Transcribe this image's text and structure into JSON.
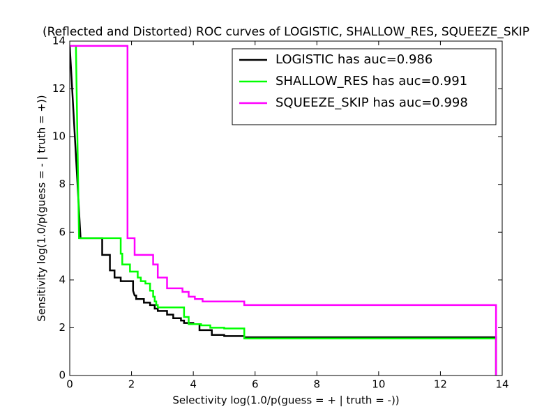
{
  "chart_data": {
    "type": "line",
    "title": "(Reflected and Distorted) ROC curves of LOGISTIC, SHALLOW_RES, SQUEEZE_SKIP",
    "x_label": "Selectivity log(1.0/p(guess = + | truth = -))",
    "y_label": "Sensitivity log(1.0/p(guess = - | truth = +))",
    "xlim": [
      0,
      14
    ],
    "ylim": [
      0,
      14
    ],
    "xticks": [
      0,
      2,
      4,
      6,
      8,
      10,
      12,
      14
    ],
    "yticks": [
      0,
      2,
      4,
      6,
      8,
      10,
      12,
      14
    ],
    "legend": "upper right",
    "series": [
      {
        "name": "LOGISTIC has auc=0.986",
        "color": "#000000",
        "x": [
          0,
          0.35,
          1.05,
          1.05,
          1.3,
          1.3,
          1.45,
          1.45,
          1.65,
          1.65,
          2.05,
          2.05,
          2.1,
          2.15,
          2.15,
          2.4,
          2.4,
          2.6,
          2.6,
          2.75,
          2.75,
          2.85,
          2.85,
          3.15,
          3.15,
          3.35,
          3.35,
          3.6,
          3.6,
          3.7,
          3.7,
          4.0,
          4.0,
          4.2,
          4.2,
          4.6,
          4.6,
          5.0,
          5.0,
          5.65,
          5.65,
          13.8,
          13.8
        ],
        "values": [
          13.8,
          5.75,
          5.75,
          5.05,
          5.05,
          4.4,
          4.4,
          4.1,
          4.1,
          3.95,
          3.95,
          3.55,
          3.35,
          3.35,
          3.2,
          3.2,
          3.05,
          3.05,
          2.95,
          2.95,
          2.8,
          2.8,
          2.7,
          2.7,
          2.55,
          2.55,
          2.4,
          2.4,
          2.3,
          2.3,
          2.2,
          2.2,
          2.15,
          2.15,
          1.9,
          1.9,
          1.7,
          1.7,
          1.65,
          1.65,
          1.6,
          1.6,
          0
        ]
      },
      {
        "name": "SHALLOW_RES has auc=0.991",
        "color": "#00ff00",
        "x": [
          0.2,
          0.3,
          1.65,
          1.65,
          1.7,
          1.7,
          1.95,
          1.95,
          2.2,
          2.2,
          2.3,
          2.3,
          2.45,
          2.45,
          2.6,
          2.6,
          2.7,
          2.7,
          2.75,
          2.75,
          2.8,
          2.8,
          2.85,
          2.85,
          3.7,
          3.7,
          3.85,
          3.85,
          4.25,
          4.25,
          4.55,
          4.55,
          5.0,
          5.0,
          5.65,
          5.65,
          13.8,
          13.8
        ],
        "values": [
          13.8,
          5.75,
          5.75,
          5.1,
          5.1,
          4.65,
          4.65,
          4.35,
          4.35,
          4.1,
          4.1,
          3.95,
          3.95,
          3.85,
          3.85,
          3.55,
          3.55,
          3.3,
          3.3,
          3.1,
          3.1,
          2.95,
          2.95,
          2.85,
          2.85,
          2.45,
          2.45,
          2.15,
          2.15,
          2.1,
          2.1,
          2.0,
          2.0,
          1.97,
          1.97,
          1.55,
          1.55,
          0
        ]
      },
      {
        "name": "SQUEEZE_SKIP has auc=0.998",
        "color": "#ff00ff",
        "x": [
          0,
          1.87,
          1.87,
          2.1,
          2.1,
          2.7,
          2.7,
          2.85,
          2.85,
          3.15,
          3.15,
          3.65,
          3.65,
          3.85,
          3.85,
          4.05,
          4.05,
          4.3,
          4.3,
          5.65,
          5.65,
          13.8,
          13.8
        ],
        "values": [
          13.8,
          13.8,
          5.75,
          5.75,
          5.05,
          5.05,
          4.65,
          4.65,
          4.1,
          4.1,
          3.65,
          3.65,
          3.5,
          3.5,
          3.3,
          3.3,
          3.2,
          3.2,
          3.1,
          3.1,
          2.95,
          2.95,
          0
        ]
      }
    ]
  }
}
